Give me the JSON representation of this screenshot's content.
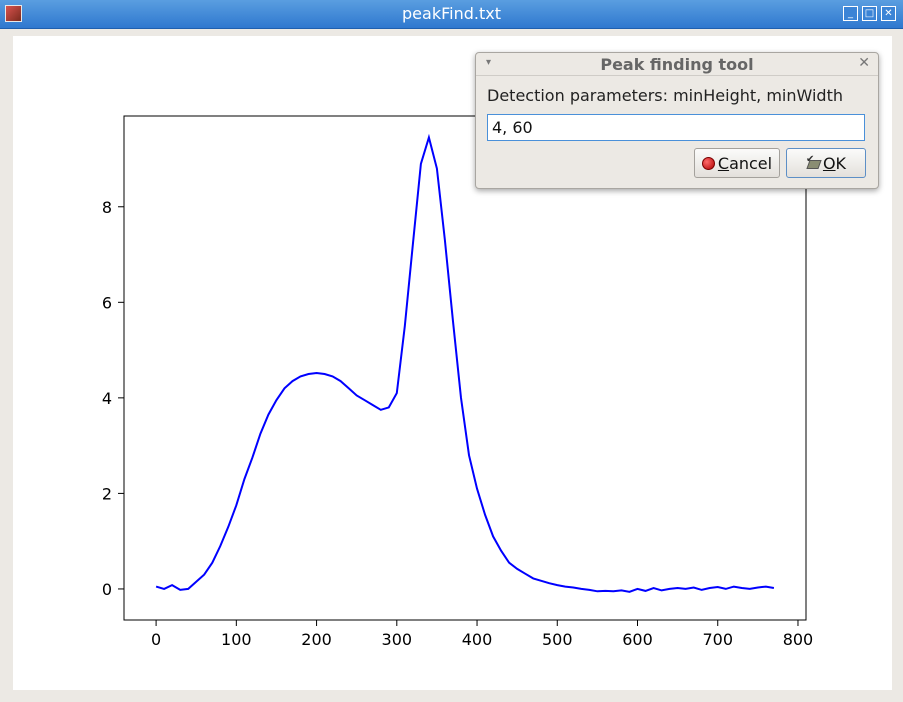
{
  "window": {
    "title": "peakFind.txt",
    "buttons": {
      "minimize": "_",
      "maximize": "□",
      "close": "✕"
    }
  },
  "dialog": {
    "title": "Peak finding tool",
    "prompt": "Detection parameters: minHeight, minWidth",
    "input_value": "4, 60",
    "cancel_accel": "C",
    "cancel_rest": "ancel",
    "ok_accel": "O",
    "ok_rest": "K",
    "menu_icon": "▾",
    "close_icon": "✕"
  },
  "chart_data": {
    "type": "line",
    "color": "#0000ff",
    "xlim": [
      -40,
      810
    ],
    "ylim": [
      -0.65,
      9.9
    ],
    "xticks": [
      0,
      100,
      200,
      300,
      400,
      500,
      600,
      700,
      800
    ],
    "yticks": [
      0,
      2,
      4,
      6,
      8
    ],
    "series": [
      {
        "x": [
          0,
          10,
          20,
          30,
          40,
          50,
          60,
          70,
          80,
          90,
          100,
          110,
          120,
          130,
          140,
          150,
          160,
          170,
          180,
          190,
          200,
          210,
          220,
          230,
          240,
          250,
          260,
          270,
          280,
          290,
          300,
          310,
          320,
          330,
          340,
          350,
          360,
          370,
          380,
          390,
          400,
          410,
          420,
          430,
          440,
          450,
          460,
          470,
          480,
          490,
          500,
          510,
          520,
          530,
          540,
          550,
          560,
          570,
          580,
          590,
          600,
          610,
          620,
          630,
          640,
          650,
          660,
          670,
          680,
          690,
          700,
          710,
          720,
          730,
          740,
          750,
          760,
          770
        ],
        "y": [
          0.05,
          0.0,
          0.08,
          -0.02,
          0.0,
          0.15,
          0.3,
          0.55,
          0.9,
          1.3,
          1.75,
          2.3,
          2.75,
          3.25,
          3.65,
          3.95,
          4.2,
          4.35,
          4.45,
          4.5,
          4.52,
          4.5,
          4.45,
          4.35,
          4.2,
          4.05,
          3.95,
          3.85,
          3.75,
          3.8,
          4.1,
          5.5,
          7.2,
          8.9,
          9.45,
          8.8,
          7.3,
          5.6,
          4.0,
          2.8,
          2.1,
          1.55,
          1.1,
          0.8,
          0.55,
          0.42,
          0.32,
          0.22,
          0.17,
          0.12,
          0.08,
          0.05,
          0.03,
          0.0,
          -0.02,
          -0.05,
          -0.04,
          -0.05,
          -0.03,
          -0.06,
          0.0,
          -0.04,
          0.02,
          -0.03,
          0.0,
          0.02,
          0.0,
          0.03,
          -0.02,
          0.02,
          0.04,
          0.0,
          0.05,
          0.02,
          0.0,
          0.03,
          0.05,
          0.02
        ]
      }
    ]
  }
}
